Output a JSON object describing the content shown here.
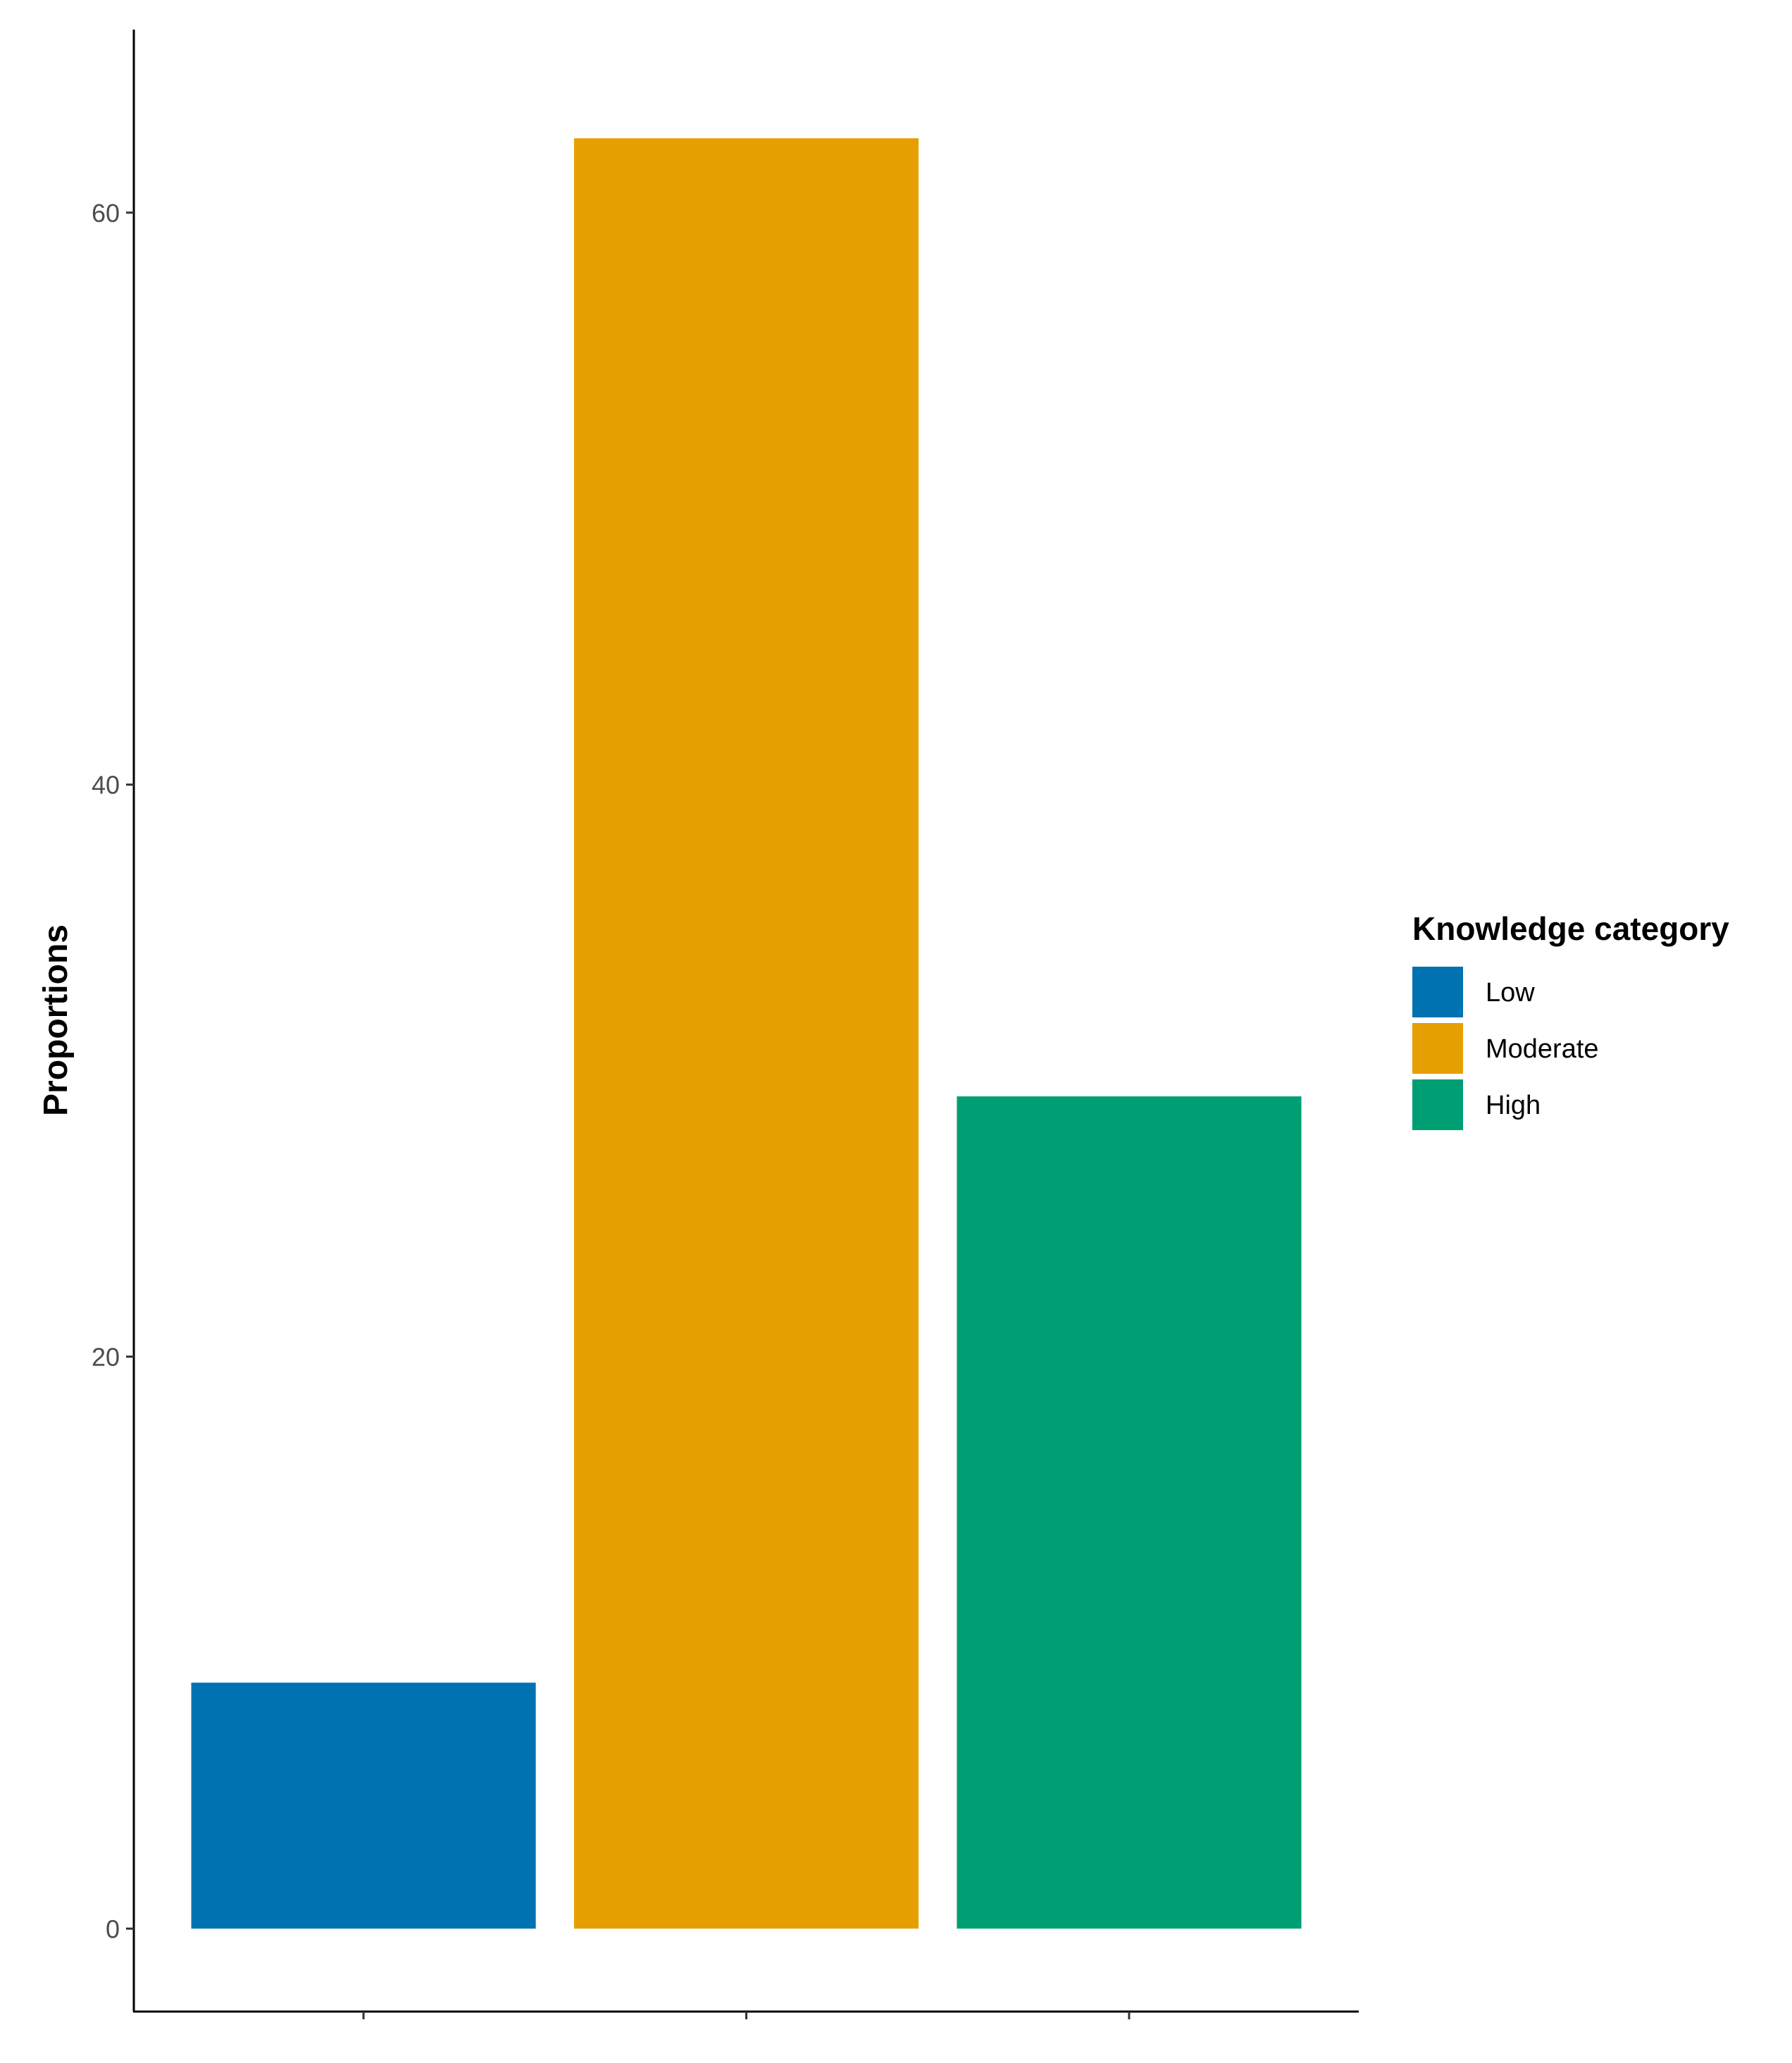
{
  "chart_data": {
    "type": "bar",
    "categories": [
      "Low",
      "Moderate",
      "High"
    ],
    "values": [
      8.6,
      62.6,
      29.1
    ],
    "colors": [
      "#0072B2",
      "#E69F00",
      "#009E73"
    ],
    "title": "",
    "xlabel": "",
    "ylabel": "Proportions",
    "ylim": [
      -2.9,
      66.4
    ],
    "yticks": [
      0,
      20,
      40,
      60
    ],
    "ytick_labels": [
      "0",
      "20",
      "40",
      "60"
    ],
    "grid": false,
    "legend": {
      "title": "Knowledge category",
      "position": "right",
      "entries": [
        "Low",
        "Moderate",
        "High"
      ]
    }
  }
}
